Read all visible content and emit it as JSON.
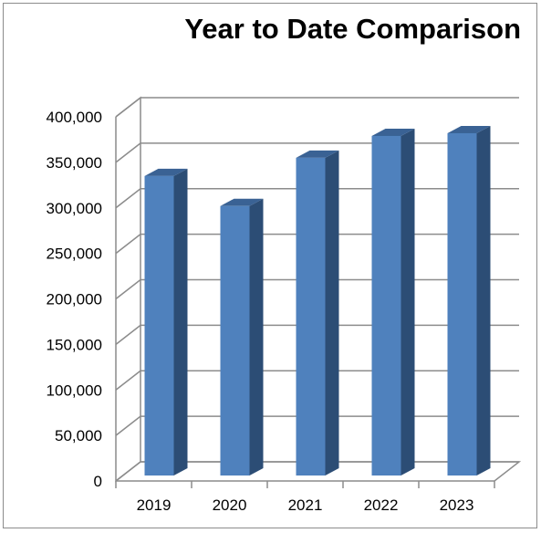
{
  "chart_data": {
    "type": "bar",
    "title": "Year to Date Comparison",
    "categories": [
      "2019",
      "2020",
      "2021",
      "2022",
      "2023"
    ],
    "values": [
      335000,
      302000,
      355000,
      379000,
      382000
    ],
    "ylim": [
      0,
      400000
    ],
    "yticks": [
      0,
      50000,
      100000,
      150000,
      200000,
      250000,
      300000,
      350000,
      400000
    ],
    "ytick_labels": [
      "0",
      "50,000",
      "100,000",
      "150,000",
      "200,000",
      "250,000",
      "300,000",
      "350,000",
      "400,000"
    ],
    "grid": true,
    "legend": "none",
    "style": "3d-column",
    "colors": {
      "bar_front": "#4f81bd",
      "bar_side": "#2c4d75",
      "bar_top": "#3a6294",
      "gridline": "#8c8c8c"
    }
  }
}
